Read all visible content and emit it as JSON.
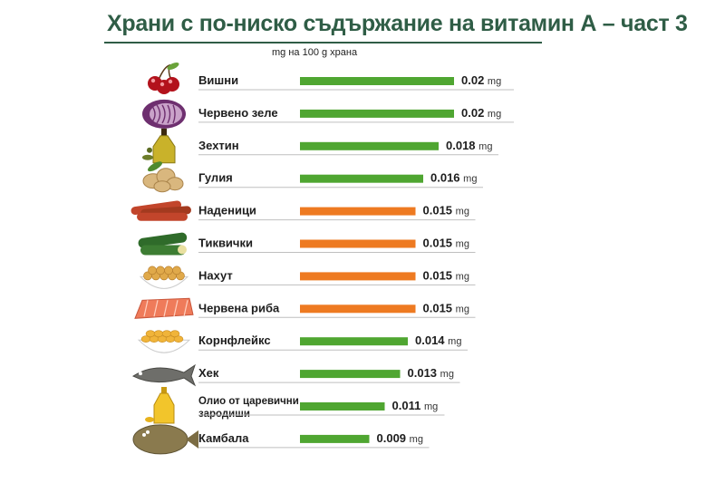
{
  "header": {
    "title": "Храни с по-ниско съдържание на витамин А – част 3",
    "subtitle": "mg на 100 g храна"
  },
  "colors": {
    "green": "#4fa631",
    "orange": "#ee7a21",
    "title": "#2f5d46"
  },
  "chart_data": {
    "type": "bar",
    "orientation": "horizontal",
    "title": "Храни с по-ниско съдържание на витамин А – част 3",
    "subtitle": "mg на 100 g храна",
    "unit": "mg",
    "categories": [
      "Вишни",
      "Червено зеле",
      "Зехтин",
      "Гулия",
      "Наденици",
      "Тиквички",
      "Нахут",
      "Червена риба",
      "Корнфлейкс",
      "Хек",
      "Олио от царевични зародиши",
      "Камбала"
    ],
    "values": [
      0.02,
      0.02,
      0.018,
      0.016,
      0.015,
      0.015,
      0.015,
      0.015,
      0.014,
      0.013,
      0.011,
      0.009
    ],
    "value_labels": [
      "0.02",
      "0.02",
      "0.018",
      "0.016",
      "0.015",
      "0.015",
      "0.015",
      "0.015",
      "0.014",
      "0.013",
      "0.011",
      "0.009"
    ],
    "bar_colors": [
      "green",
      "green",
      "green",
      "green",
      "orange",
      "orange",
      "orange",
      "orange",
      "green",
      "green",
      "green",
      "green"
    ],
    "icons": [
      "cherries-icon",
      "red-cabbage-icon",
      "olive-oil-bottle-icon",
      "jerusalem-artichoke-icon",
      "sausages-icon",
      "zucchini-icon",
      "chickpeas-bowl-icon",
      "salmon-fillet-icon",
      "cornflakes-bowl-icon",
      "hake-fish-icon",
      "corn-oil-bottle-icon",
      "flounder-fish-icon"
    ],
    "label_lines": [
      [
        "Вишни"
      ],
      [
        "Червено зеле"
      ],
      [
        "Зехтин"
      ],
      [
        "Гулия"
      ],
      [
        "Наденици"
      ],
      [
        "Тиквички"
      ],
      [
        "Нахут"
      ],
      [
        "Червена риба"
      ],
      [
        "Корнфлейкс"
      ],
      [
        "Хек"
      ],
      [
        "Олио от царевични",
        "зародиши"
      ],
      [
        "Камбала"
      ]
    ],
    "xlim": [
      0,
      0.02
    ],
    "grid": false,
    "legend": "none"
  }
}
